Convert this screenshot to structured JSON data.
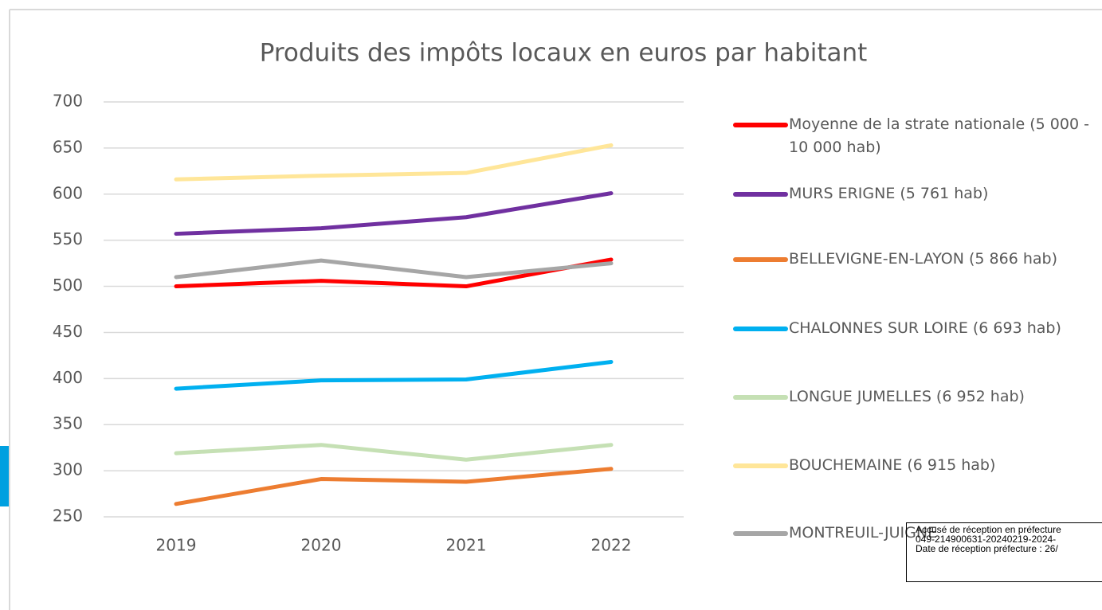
{
  "chart_data": {
    "type": "line",
    "title": "Produits des impôts locaux en euros par habitant",
    "categories": [
      "2019",
      "2020",
      "2021",
      "2022"
    ],
    "ylim": [
      250,
      700
    ],
    "yticks": [
      250,
      300,
      350,
      400,
      450,
      500,
      550,
      600,
      650,
      700
    ],
    "grid": true,
    "legend": "right",
    "series": [
      {
        "name": "Moyenne de la strate nationale (5 000 - 10 000 hab)",
        "color": "#ff0000",
        "values": [
          500,
          506,
          500,
          529
        ]
      },
      {
        "name": "MURS ERIGNE (5 761 hab)",
        "color": "#7030a0",
        "values": [
          557,
          563,
          575,
          601
        ]
      },
      {
        "name": "BELLEVIGNE-EN-LAYON (5 866 hab)",
        "color": "#ed7d31",
        "values": [
          264,
          291,
          288,
          302
        ]
      },
      {
        "name": "CHALONNES SUR LOIRE (6 693 hab)",
        "color": "#00b0f0",
        "values": [
          389,
          398,
          399,
          418
        ]
      },
      {
        "name": "LONGUE JUMELLES (6 952 hab)",
        "color": "#c5e0b4",
        "values": [
          319,
          328,
          312,
          328
        ]
      },
      {
        "name": "BOUCHEMAINE (6 915 hab)",
        "color": "#ffe699",
        "values": [
          616,
          620,
          623,
          653
        ]
      },
      {
        "name": "MONTREUIL-JUIGNE",
        "color": "#a6a6a6",
        "values": [
          510,
          528,
          510,
          525
        ]
      }
    ]
  },
  "stamp": {
    "lines": [
      "Accusé de réception en préfecture",
      "049-214900631-20240219-2024-",
      "Date de réception préfecture : 26/"
    ]
  }
}
